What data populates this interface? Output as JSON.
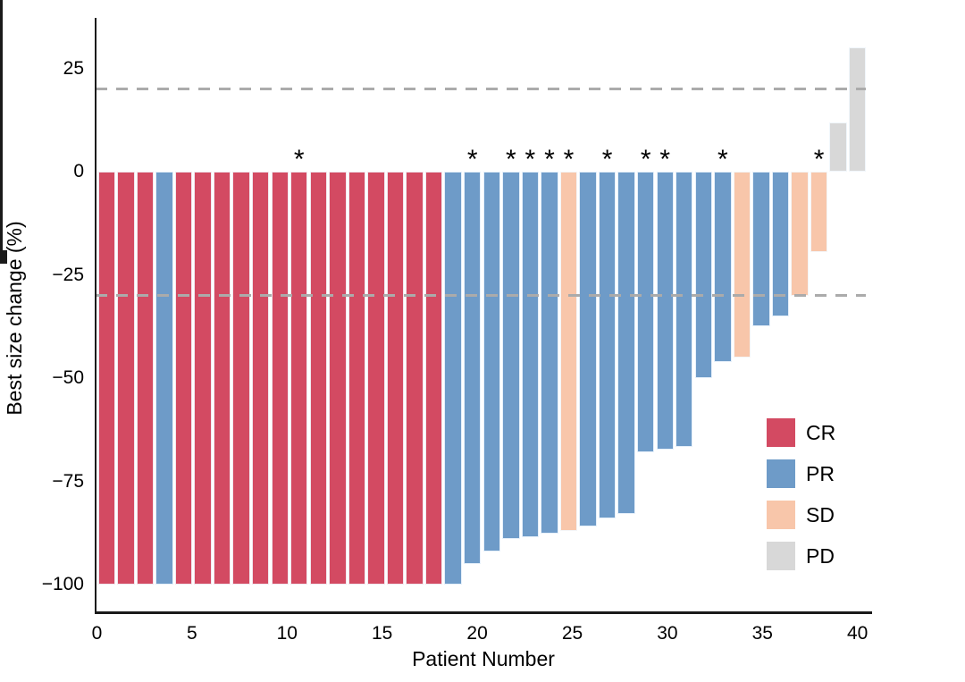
{
  "chart_data": {
    "type": "bar",
    "subtype": "waterfall",
    "title": "",
    "xlabel": "Patient Number",
    "ylabel": "Best size change (%)",
    "grid": false,
    "legend_position": "inside-right",
    "x_axis": {
      "min": 0,
      "max": 41,
      "major_ticks": [
        {
          "v": 0,
          "label": "0"
        },
        {
          "v": 5,
          "label": "5"
        },
        {
          "v": 10,
          "label": "10"
        },
        {
          "v": 15,
          "label": "15"
        },
        {
          "v": 20,
          "label": "20"
        },
        {
          "v": 25,
          "label": "25"
        },
        {
          "v": 30,
          "label": "30"
        },
        {
          "v": 35,
          "label": "35"
        },
        {
          "v": 40,
          "label": "40"
        }
      ]
    },
    "y_axis": {
      "min": -106.5,
      "max": 36.5,
      "ticks": [
        {
          "v": 25,
          "label": "25"
        },
        {
          "v": 0,
          "label": "0"
        },
        {
          "v": -25,
          "label": "−25"
        },
        {
          "v": -50,
          "label": "−50"
        },
        {
          "v": -75,
          "label": "−75"
        },
        {
          "v": -100,
          "label": "−100"
        }
      ]
    },
    "thresholds": [
      20,
      -30
    ],
    "threshold_color": "#ababab",
    "marker_symbol": "*",
    "colors": {
      "CR": "#D34A62",
      "PR": "#6E9BC8",
      "SD": "#F8C6AA",
      "PD": "#D8D8D8"
    },
    "legend": [
      {
        "label": "CR"
      },
      {
        "label": "PR"
      },
      {
        "label": "SD"
      },
      {
        "label": "PD"
      }
    ],
    "patients": [
      {
        "n": 1,
        "value": -100,
        "response": "CR",
        "star": false
      },
      {
        "n": 2,
        "value": -100,
        "response": "CR",
        "star": false
      },
      {
        "n": 3,
        "value": -100,
        "response": "CR",
        "star": false
      },
      {
        "n": 4,
        "value": -100,
        "response": "PR",
        "star": false
      },
      {
        "n": 5,
        "value": -100,
        "response": "CR",
        "star": false
      },
      {
        "n": 6,
        "value": -100,
        "response": "CR",
        "star": false
      },
      {
        "n": 7,
        "value": -100,
        "response": "CR",
        "star": false
      },
      {
        "n": 8,
        "value": -100,
        "response": "CR",
        "star": false
      },
      {
        "n": 9,
        "value": -100,
        "response": "CR",
        "star": false
      },
      {
        "n": 10,
        "value": -100,
        "response": "CR",
        "star": false
      },
      {
        "n": 11,
        "value": -100,
        "response": "CR",
        "star": true
      },
      {
        "n": 12,
        "value": -100,
        "response": "CR",
        "star": false
      },
      {
        "n": 13,
        "value": -100,
        "response": "CR",
        "star": false
      },
      {
        "n": 14,
        "value": -100,
        "response": "CR",
        "star": false
      },
      {
        "n": 15,
        "value": -100,
        "response": "CR",
        "star": false
      },
      {
        "n": 16,
        "value": -100,
        "response": "CR",
        "star": false
      },
      {
        "n": 17,
        "value": -100,
        "response": "CR",
        "star": false
      },
      {
        "n": 18,
        "value": -100,
        "response": "CR",
        "star": false
      },
      {
        "n": 19,
        "value": -100,
        "response": "PR",
        "star": false
      },
      {
        "n": 20,
        "value": -95,
        "response": "PR",
        "star": true
      },
      {
        "n": 21,
        "value": -92,
        "response": "PR",
        "star": false
      },
      {
        "n": 22,
        "value": -89,
        "response": "PR",
        "star": true
      },
      {
        "n": 23,
        "value": -88.5,
        "response": "PR",
        "star": true
      },
      {
        "n": 24,
        "value": -87.6,
        "response": "PR",
        "star": true
      },
      {
        "n": 25,
        "value": -87,
        "response": "SD",
        "star": true
      },
      {
        "n": 26,
        "value": -86,
        "response": "PR",
        "star": false
      },
      {
        "n": 27,
        "value": -84,
        "response": "PR",
        "star": true
      },
      {
        "n": 28,
        "value": -83,
        "response": "PR",
        "star": false
      },
      {
        "n": 29,
        "value": -68,
        "response": "PR",
        "star": true
      },
      {
        "n": 30,
        "value": -67.3,
        "response": "PR",
        "star": true
      },
      {
        "n": 31,
        "value": -66.6,
        "response": "PR",
        "star": false
      },
      {
        "n": 32,
        "value": -50,
        "response": "PR",
        "star": false
      },
      {
        "n": 33,
        "value": -46,
        "response": "PR",
        "star": true
      },
      {
        "n": 34,
        "value": -45,
        "response": "SD",
        "star": false
      },
      {
        "n": 35,
        "value": -37.5,
        "response": "PR",
        "star": false
      },
      {
        "n": 36,
        "value": -35,
        "response": "PR",
        "star": false
      },
      {
        "n": 37,
        "value": -30,
        "response": "SD",
        "star": false
      },
      {
        "n": 38,
        "value": -19.5,
        "response": "SD",
        "star": true
      },
      {
        "n": 39,
        "value": 12,
        "response": "PD",
        "star": false
      },
      {
        "n": 40,
        "value": 30,
        "response": "PD",
        "star": false
      }
    ]
  }
}
